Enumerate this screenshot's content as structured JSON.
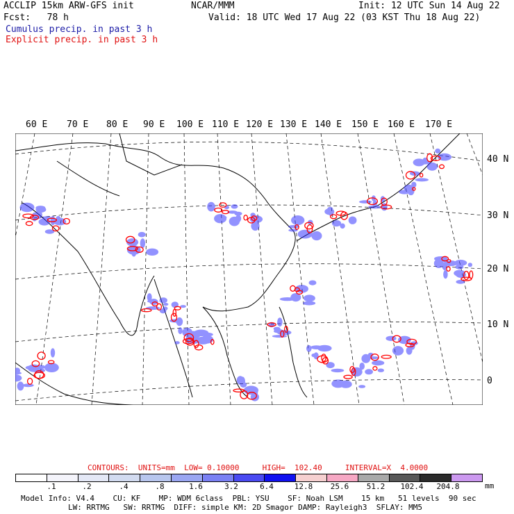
{
  "header": {
    "line1_left": "ACCLIP 15km ARW-GFS init",
    "line1_center": "NCAR/MMM",
    "line1_right": "Init: 12 UTC Sun 14 Aug 22",
    "line2_left": "Fcst:   78 h",
    "line2_right": "Valid: 18 UTC Wed 17 Aug 22 (03 KST Thu 18 Aug 22)",
    "cumulus_label": "Cumulus precip. in past 3 h",
    "explicit_label": "Explicit precip. in past 3 h"
  },
  "map": {
    "lon_labels": [
      "60 E",
      "70 E",
      "80 E",
      "90 E",
      "100 E",
      "110 E",
      "120 E",
      "130 E",
      "140 E",
      "150 E",
      "160 E",
      "170 E"
    ],
    "lat_labels": [
      "40 N",
      "30 N",
      "20 N",
      "10 N",
      "0"
    ],
    "colors": {
      "cumulus": "#2a2aff",
      "explicit": "#ff0000",
      "coast": "#000000"
    }
  },
  "contours": {
    "text": "CONTOURS:  UNITS=mm  LOW= 0.10000     HIGH=  102.40     INTERVAL=X  4.0000"
  },
  "colorbar": {
    "colors": [
      "#ffffff",
      "#f4f4fb",
      "#e4e8f6",
      "#d2dbf0",
      "#b8c6ee",
      "#9aa6f2",
      "#7a80f4",
      "#4a4af2",
      "#1010f0",
      "#f6d0d0",
      "#f6a8c4",
      "#a9a9a9",
      "#585858",
      "#2b2b2b",
      "#cc99f0"
    ],
    "ticks": [
      ".1",
      ".2",
      ".4",
      ".8",
      "1.6",
      "3.2",
      "6.4",
      "12.8",
      "25.6",
      "51.2",
      "102.4",
      "204.8"
    ],
    "unit": "mm"
  },
  "footer": {
    "line1": "Model Info: V4.4    CU: KF    MP: WDM 6class  PBL: YSU    SF: Noah LSM    15 km   51 levels  90 sec",
    "line2": "LW: RRTMG   SW: RRTMG  DIFF: simple KM: 2D Smagor DAMP: Rayleigh3  SFLAY: MM5"
  }
}
